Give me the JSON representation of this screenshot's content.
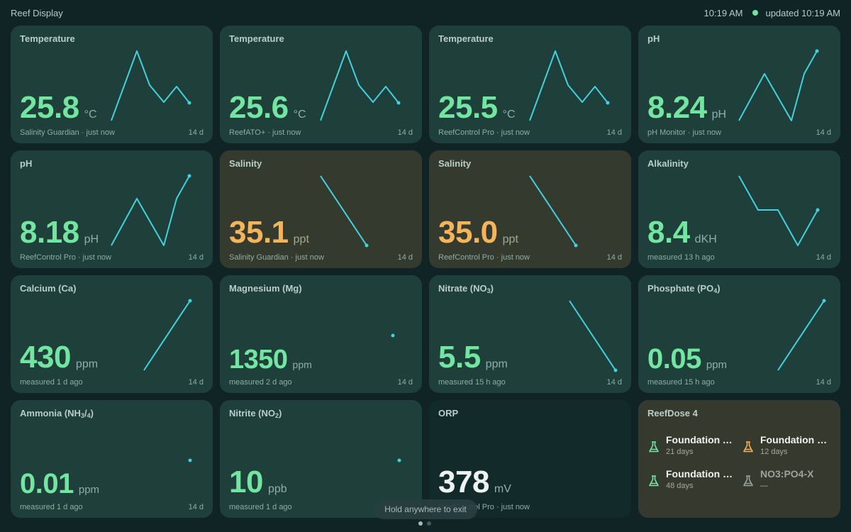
{
  "header": {
    "title": "Reef Display",
    "time": "10:19 AM",
    "updated": "updated 10:19 AM"
  },
  "colors": {
    "good": "#72e6a0",
    "warn": "#f3b45c",
    "spark": "#41d2de"
  },
  "cards": [
    {
      "title": "Temperature",
      "value": "25.8",
      "unit": "°C",
      "source": "Salinity Guardian · just now",
      "range": "14 d"
    },
    {
      "title": "Temperature",
      "value": "25.6",
      "unit": "°C",
      "source": "ReefATO+ · just now",
      "range": "14 d"
    },
    {
      "title": "Temperature",
      "value": "25.5",
      "unit": "°C",
      "source": "ReefControl Pro · just now",
      "range": "14 d"
    },
    {
      "title": "pH",
      "value": "8.24",
      "unit": "pH",
      "source": "pH Monitor · just now",
      "range": "14 d"
    },
    {
      "title": "pH",
      "value": "8.18",
      "unit": "pH",
      "source": "ReefControl Pro · just now",
      "range": "14 d"
    },
    {
      "title": "Salinity",
      "value": "35.1",
      "unit": "ppt",
      "source": "Salinity Guardian · just now",
      "range": "14 d"
    },
    {
      "title": "Salinity",
      "value": "35.0",
      "unit": "ppt",
      "source": "ReefControl Pro · just now",
      "range": "14 d"
    },
    {
      "title": "Alkalinity",
      "value": "8.4",
      "unit": "dKH",
      "source": "measured 13 h ago",
      "range": "14 d"
    },
    {
      "title": "Calcium (Ca)",
      "value": "430",
      "unit": "ppm",
      "source": "measured 1 d ago",
      "range": "14 d"
    },
    {
      "title": "Magnesium (Mg)",
      "value": "1350",
      "unit": "ppm",
      "source": "measured 2 d ago",
      "range": "14 d"
    },
    {
      "title_main": "Nitrate (NO",
      "title_sub": "3",
      "title_end": ")",
      "value": "5.5",
      "unit": "ppm",
      "source": "measured 15 h ago",
      "range": "14 d"
    },
    {
      "title_main": "Phosphate (PO",
      "title_sub": "4",
      "title_end": ")",
      "value": "0.05",
      "unit": "ppm",
      "source": "measured 15 h ago",
      "range": "14 d"
    },
    {
      "title_main": "Ammonia (NH",
      "title_sub": "3",
      "title_mid": "/",
      "title_sub2": "4",
      "title_end": ")",
      "value": "0.01",
      "unit": "ppm",
      "source": "measured 1 d ago",
      "range": "14 d"
    },
    {
      "title_main": "Nitrite (NO",
      "title_sub": "2",
      "title_end": ")",
      "value": "10",
      "unit": "ppb",
      "source": "measured 1 d ago",
      "range": ""
    },
    {
      "title": "ORP",
      "value": "378",
      "unit": "mV",
      "source": "ReefControl Pro · just now",
      "range": ""
    }
  ],
  "dose": {
    "title": "ReefDose 4",
    "items": [
      {
        "name": "Foundation A...",
        "sub": "21 days",
        "icon": "flask-icon",
        "color": "#72e6a0"
      },
      {
        "name": "Foundation B...",
        "sub": "12 days",
        "icon": "flask-icon",
        "color": "#f3b45c"
      },
      {
        "name": "Foundation C...",
        "sub": "48 days",
        "icon": "flask-icon",
        "color": "#72e6a0"
      },
      {
        "name": "NO3:PO4-X",
        "sub": "—",
        "icon": "flask-icon",
        "color": "#9aa39c"
      }
    ]
  },
  "overlay": {
    "exit_hint": "Hold anywhere to exit"
  }
}
